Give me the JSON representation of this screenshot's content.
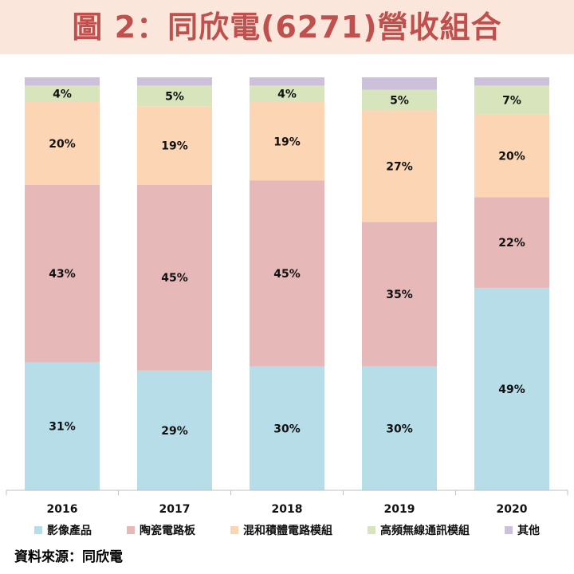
{
  "title": "圖 2：同欣電(6271)營收組合",
  "source": "資料來源：同欣電",
  "chart_data": {
    "type": "bar",
    "stacked": true,
    "normalized": true,
    "categories": [
      "2016",
      "2017",
      "2018",
      "2019",
      "2020"
    ],
    "ylim": [
      0,
      100
    ],
    "grid": false,
    "legend_position": "bottom",
    "series": [
      {
        "name": "影像產品",
        "color": "#b7dde8",
        "values": [
          31,
          29,
          30,
          30,
          49
        ],
        "labels": [
          "31%",
          "29%",
          "30%",
          "30%",
          "49%"
        ]
      },
      {
        "name": "陶瓷電路板",
        "color": "#e6b9b8",
        "values": [
          43,
          45,
          45,
          35,
          22
        ],
        "labels": [
          "43%",
          "45%",
          "45%",
          "35%",
          "22%"
        ]
      },
      {
        "name": "混和積體電路模組",
        "color": "#fcd5b4",
        "values": [
          20,
          19,
          19,
          27,
          20
        ],
        "labels": [
          "20%",
          "19%",
          "19%",
          "27%",
          "20%"
        ]
      },
      {
        "name": "高頻無線通訊模組",
        "color": "#d7e4bc",
        "values": [
          4,
          5,
          4,
          5,
          7
        ],
        "labels": [
          "4%",
          "5%",
          "4%",
          "5%",
          "7%"
        ]
      },
      {
        "name": "其他",
        "color": "#ccc0da",
        "values": [
          2,
          2,
          2,
          3,
          2
        ],
        "labels": [
          "",
          "",
          "",
          "",
          ""
        ]
      }
    ]
  }
}
